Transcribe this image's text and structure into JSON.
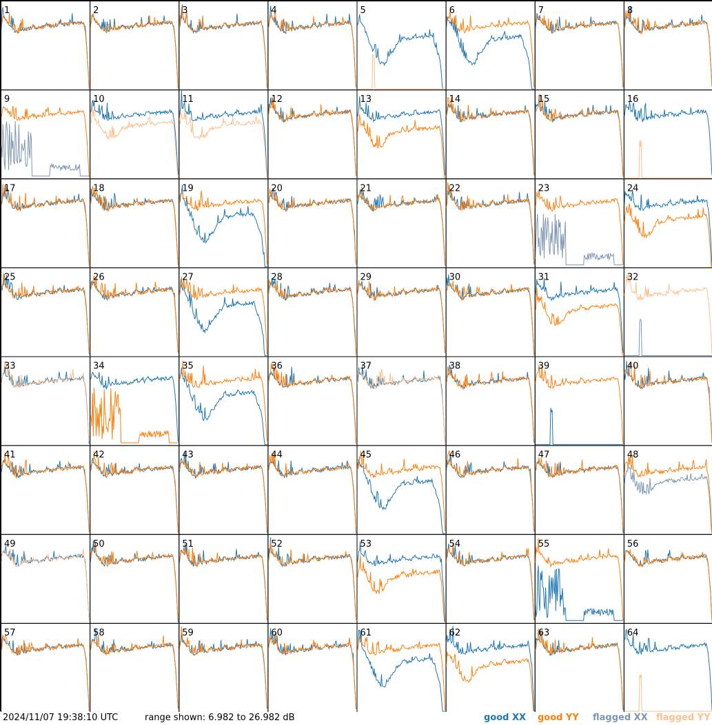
{
  "footer": {
    "timestamp": "2024/11/07 19:38:10 UTC",
    "range": "range shown: 6.982 to 26.982 dB"
  },
  "legend": [
    {
      "key": "good_xx",
      "label": "good XX",
      "color": "#1f77b4"
    },
    {
      "key": "good_yy",
      "label": "good YY",
      "color": "#ff7f0e"
    },
    {
      "key": "flagged_xx",
      "label": "flagged XX",
      "color": "#7f96b2"
    },
    {
      "key": "flagged_yy",
      "label": "flagged YY",
      "color": "#ffbf8f"
    }
  ],
  "chart_data": {
    "type": "line",
    "grid": {
      "rows": 8,
      "cols": 8
    },
    "ylim": [
      6.982,
      26.982
    ],
    "yunit": "dB",
    "panels": [
      {
        "label": "1",
        "xx": "normal",
        "yy": "normal"
      },
      {
        "label": "2",
        "xx": "normal",
        "yy": "normal"
      },
      {
        "label": "3",
        "xx": "normal",
        "yy": "normal"
      },
      {
        "label": "4",
        "xx": "normal",
        "yy": "normal"
      },
      {
        "label": "5",
        "xx": "low_dip",
        "yy": "flagged_spike"
      },
      {
        "label": "6",
        "xx": "low_dip",
        "yy": "normal"
      },
      {
        "label": "7",
        "xx": "normal",
        "yy": "normal"
      },
      {
        "label": "8",
        "xx": "normal",
        "yy": "normal"
      },
      {
        "label": "9",
        "xx": "flagged_spiky",
        "yy": "normal"
      },
      {
        "label": "10",
        "xx": "normal",
        "yy": "flagged_low"
      },
      {
        "label": "11",
        "xx": "normal",
        "yy": "flagged_low"
      },
      {
        "label": "12",
        "xx": "normal",
        "yy": "normal"
      },
      {
        "label": "13",
        "xx": "normal",
        "yy": "low"
      },
      {
        "label": "14",
        "xx": "normal",
        "yy": "normal"
      },
      {
        "label": "15",
        "xx": "normal",
        "yy": "normal"
      },
      {
        "label": "16",
        "xx": "normal",
        "yy": "flagged_spike"
      },
      {
        "label": "17",
        "xx": "normal",
        "yy": "normal"
      },
      {
        "label": "18",
        "xx": "normal",
        "yy": "normal"
      },
      {
        "label": "19",
        "xx": "low_dip",
        "yy": "normal"
      },
      {
        "label": "20",
        "xx": "normal",
        "yy": "normal"
      },
      {
        "label": "21",
        "xx": "normal",
        "yy": "normal"
      },
      {
        "label": "22",
        "xx": "normal",
        "yy": "normal"
      },
      {
        "label": "23",
        "xx": "flagged_spiky",
        "yy": "normal"
      },
      {
        "label": "24",
        "xx": "normal",
        "yy": "low"
      },
      {
        "label": "25",
        "xx": "normal",
        "yy": "normal"
      },
      {
        "label": "26",
        "xx": "normal",
        "yy": "normal"
      },
      {
        "label": "27",
        "xx": "low_dip",
        "yy": "normal"
      },
      {
        "label": "28",
        "xx": "normal",
        "yy": "normal"
      },
      {
        "label": "29",
        "xx": "normal",
        "yy": "normal"
      },
      {
        "label": "30",
        "xx": "normal",
        "yy": "normal"
      },
      {
        "label": "31",
        "xx": "normal",
        "yy": "low"
      },
      {
        "label": "32",
        "xx": "flagged_spike",
        "yy": "flagged_normal"
      },
      {
        "label": "33",
        "xx": "normal",
        "yy": "flagged_normal"
      },
      {
        "label": "34",
        "xx": "normal",
        "yy": "spiky"
      },
      {
        "label": "35",
        "xx": "low_dip",
        "yy": "normal"
      },
      {
        "label": "36",
        "xx": "normal",
        "yy": "normal"
      },
      {
        "label": "37",
        "xx": "normal",
        "yy": "flagged_normal"
      },
      {
        "label": "38",
        "xx": "normal",
        "yy": "normal"
      },
      {
        "label": "39",
        "xx": "spike",
        "yy": "normal"
      },
      {
        "label": "40",
        "xx": "normal",
        "yy": "normal"
      },
      {
        "label": "41",
        "xx": "normal",
        "yy": "normal"
      },
      {
        "label": "42",
        "xx": "normal",
        "yy": "normal"
      },
      {
        "label": "43",
        "xx": "normal",
        "yy": "normal"
      },
      {
        "label": "44",
        "xx": "normal",
        "yy": "normal"
      },
      {
        "label": "45",
        "xx": "low_dip",
        "yy": "normal"
      },
      {
        "label": "46",
        "xx": "normal",
        "yy": "normal"
      },
      {
        "label": "47",
        "xx": "normal",
        "yy": "normal"
      },
      {
        "label": "48",
        "xx": "flagged_low",
        "yy": "normal"
      },
      {
        "label": "49",
        "xx": "normal",
        "yy": "flagged_normal"
      },
      {
        "label": "50",
        "xx": "normal",
        "yy": "normal"
      },
      {
        "label": "51",
        "xx": "normal",
        "yy": "normal"
      },
      {
        "label": "52",
        "xx": "normal",
        "yy": "normal"
      },
      {
        "label": "53",
        "xx": "normal",
        "yy": "low"
      },
      {
        "label": "54",
        "xx": "normal",
        "yy": "normal"
      },
      {
        "label": "55",
        "xx": "spiky",
        "yy": "normal"
      },
      {
        "label": "56",
        "xx": "normal",
        "yy": "normal"
      },
      {
        "label": "57",
        "xx": "normal",
        "yy": "normal"
      },
      {
        "label": "58",
        "xx": "normal",
        "yy": "normal"
      },
      {
        "label": "59",
        "xx": "normal",
        "yy": "normal"
      },
      {
        "label": "60",
        "xx": "normal",
        "yy": "normal"
      },
      {
        "label": "61",
        "xx": "low_dip",
        "yy": "normal"
      },
      {
        "label": "62",
        "xx": "normal",
        "yy": "low"
      },
      {
        "label": "63",
        "xx": "normal",
        "yy": "normal"
      },
      {
        "label": "64",
        "xx": "normal",
        "yy": "flagged_spike"
      }
    ]
  }
}
